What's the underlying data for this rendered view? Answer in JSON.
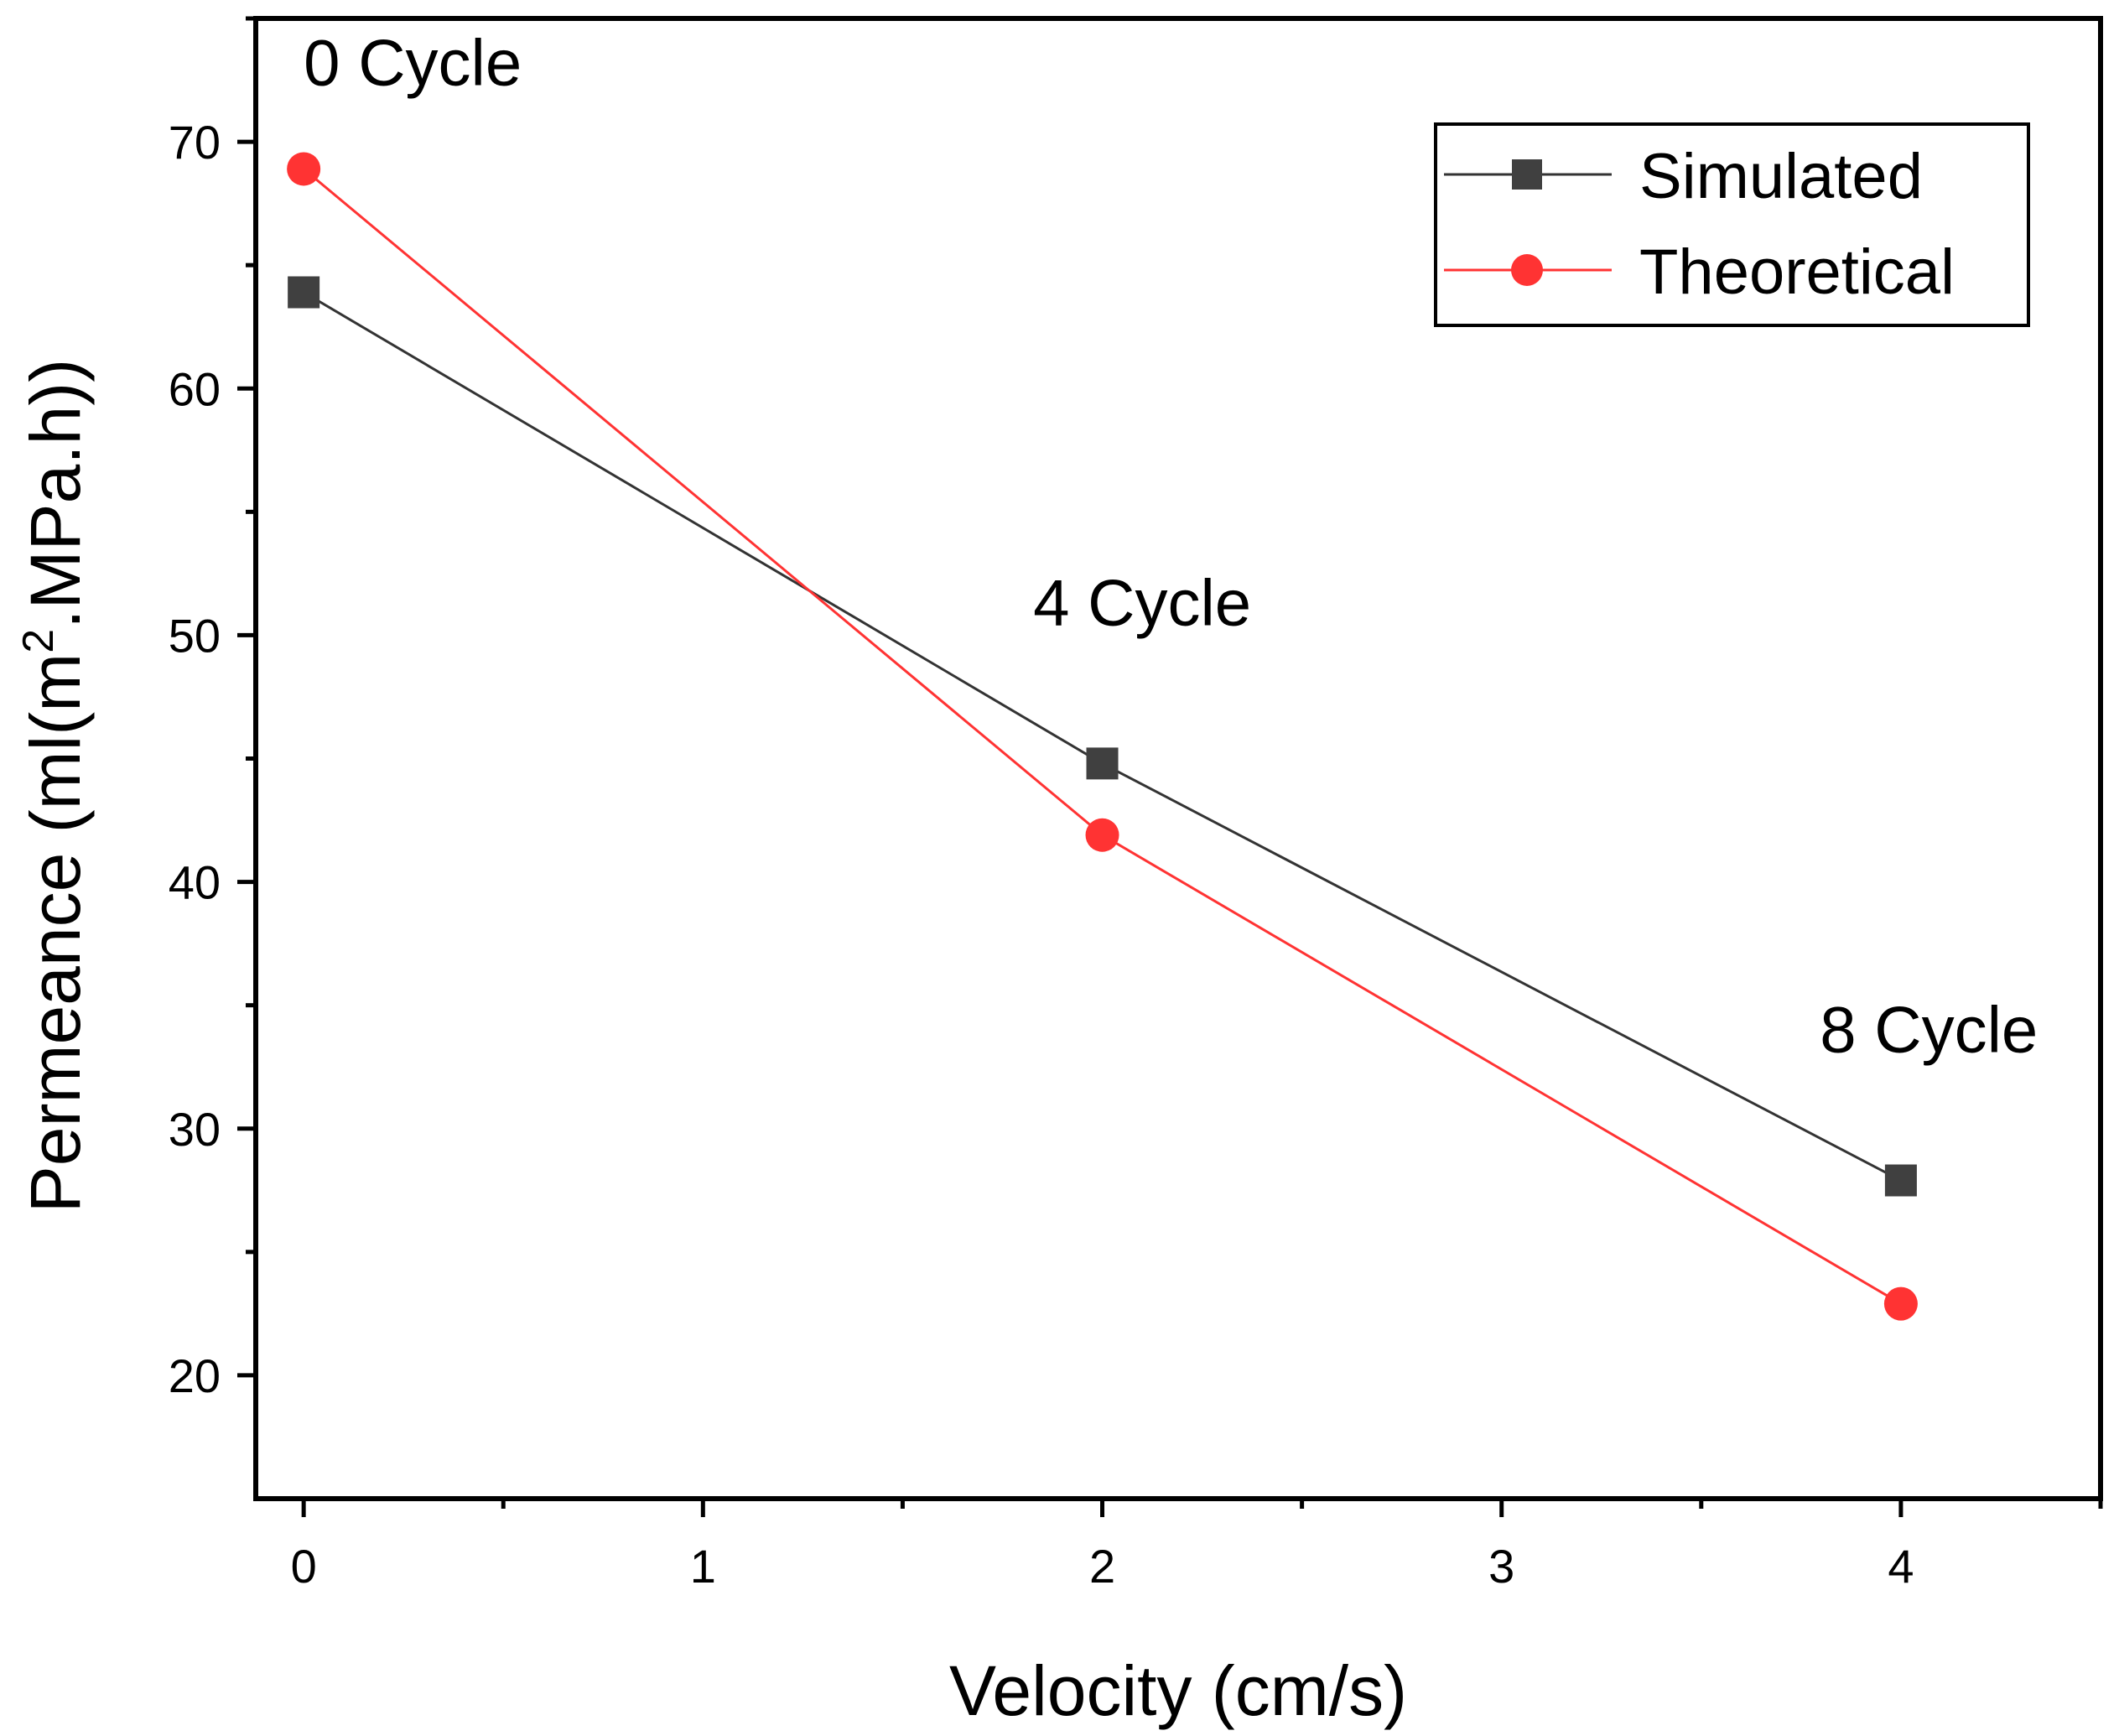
{
  "chart_data": {
    "type": "line",
    "title": "",
    "xlabel": "Velocity (cm/s)",
    "ylabel": "Permeance (ml(m².MPa.h))",
    "ylabel_parts": {
      "before": "Permeance (ml(m",
      "sup": "2",
      "after": ".MPa.h))"
    },
    "xlim": [
      -0.12,
      4.5
    ],
    "ylim": [
      15,
      75
    ],
    "x_ticks": [
      0,
      1,
      2,
      3,
      4
    ],
    "x_tick_labels": [
      "0",
      "1",
      "2",
      "3",
      "4"
    ],
    "x_minor_ticks": [
      0.5,
      1.5,
      2.5,
      3.5,
      4.5
    ],
    "y_ticks": [
      20,
      30,
      40,
      50,
      60,
      70
    ],
    "y_tick_labels": [
      "20",
      "30",
      "40",
      "50",
      "60",
      "70"
    ],
    "y_minor_ticks": [
      25,
      35,
      45,
      55,
      65,
      75
    ],
    "grid": false,
    "legend_position": "top-right",
    "series": [
      {
        "name": "Simulated",
        "marker": "square",
        "color": "#404040",
        "line_color": "#333333",
        "x": [
          0,
          2,
          4
        ],
        "values": [
          63.9,
          44.8,
          27.9
        ]
      },
      {
        "name": "Theoretical",
        "marker": "circle",
        "color": "#ff3333",
        "line_color": "#ff3333",
        "x": [
          0,
          2,
          4
        ],
        "values": [
          68.9,
          41.9,
          22.9
        ]
      }
    ],
    "annotations": [
      {
        "text": "0 Cycle",
        "x": 0,
        "y": 72.3,
        "anchor": "start"
      },
      {
        "text": "4 Cycle",
        "x": 2.1,
        "y": 50.4,
        "anchor": "middle"
      },
      {
        "text": "8 Cycle",
        "x": 4.07,
        "y": 33.1,
        "anchor": "middle"
      }
    ]
  }
}
